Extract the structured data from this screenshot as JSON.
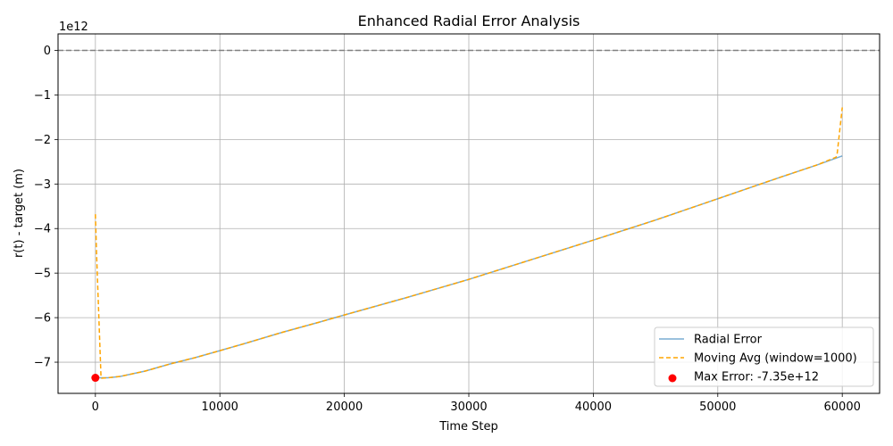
{
  "chart_data": {
    "type": "line",
    "title": "Enhanced Radial Error Analysis",
    "xlabel": "Time Step",
    "ylabel": "r(t) - target (m)",
    "y_offset_label": "1e12",
    "xlim": [
      -3000,
      63000
    ],
    "ylim": [
      -7.7,
      0.37
    ],
    "y_unit_scale": 1000000000000.0,
    "x_ticks": [
      0,
      10000,
      20000,
      30000,
      40000,
      50000,
      60000
    ],
    "x_tick_labels": [
      "0",
      "10000",
      "20000",
      "30000",
      "40000",
      "50000",
      "60000"
    ],
    "y_ticks": [
      0,
      -1,
      -2,
      -3,
      -4,
      -5,
      -6,
      -7
    ],
    "y_tick_labels": [
      "0",
      "−1",
      "−2",
      "−3",
      "−4",
      "−5",
      "−6",
      "−7"
    ],
    "grid": true,
    "reference_line": {
      "y": 0,
      "style": "dashed",
      "color": "#808080"
    },
    "series": [
      {
        "name": "Radial Error",
        "style": "solid",
        "color": "#1f77b4",
        "x": [
          0,
          200,
          500,
          1000,
          2000,
          3000,
          4000,
          5000,
          6000,
          8000,
          10000,
          12000,
          15000,
          18000,
          20000,
          25000,
          30000,
          35000,
          40000,
          45000,
          50000,
          55000,
          58000,
          60000
        ],
        "y": [
          -7.35,
          -7.35,
          -7.35,
          -7.35,
          -7.32,
          -7.26,
          -7.2,
          -7.12,
          -7.04,
          -6.9,
          -6.74,
          -6.58,
          -6.33,
          -6.1,
          -5.94,
          -5.55,
          -5.14,
          -4.7,
          -4.26,
          -3.81,
          -3.33,
          -2.85,
          -2.57,
          -2.37
        ]
      },
      {
        "name": "Moving Avg (window=1000)",
        "style": "dashed",
        "color": "#ffa500",
        "x": [
          0,
          100,
          450,
          500,
          1000,
          2000,
          3000,
          4000,
          5000,
          6000,
          8000,
          10000,
          12000,
          15000,
          18000,
          20000,
          25000,
          30000,
          35000,
          40000,
          45000,
          50000,
          55000,
          58000,
          59500,
          59600,
          60000
        ],
        "y": [
          -3.68,
          -4.6,
          -7.33,
          -7.36,
          -7.35,
          -7.32,
          -7.26,
          -7.2,
          -7.12,
          -7.04,
          -6.9,
          -6.74,
          -6.58,
          -6.33,
          -6.1,
          -5.94,
          -5.55,
          -5.14,
          -4.7,
          -4.26,
          -3.81,
          -3.33,
          -2.85,
          -2.57,
          -2.4,
          -2.3,
          -1.28
        ]
      }
    ],
    "markers": [
      {
        "name": "Max Error: -7.35e+12",
        "x": 0,
        "y": -7.35,
        "color": "#ff0000"
      }
    ],
    "legend": {
      "position": "lower right",
      "entries": [
        "Radial Error",
        "Moving Avg (window=1000)",
        "Max Error: -7.35e+12"
      ]
    }
  }
}
